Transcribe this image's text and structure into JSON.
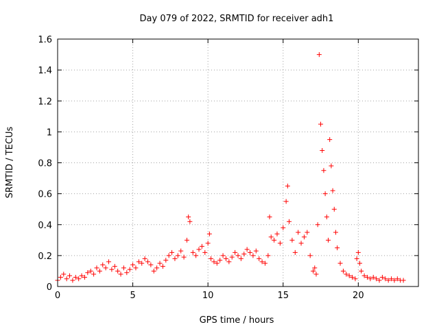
{
  "chart_data": {
    "type": "scatter",
    "title": "Day 079 of 2022, SRMTID for receiver adh1",
    "xlabel": "GPS time / hours",
    "ylabel": "SRMTID / TECUs",
    "xlim": [
      0,
      24
    ],
    "ylim": [
      0,
      1.6
    ],
    "xticks": [
      0,
      5,
      10,
      15,
      20
    ],
    "xtick_labels": [
      "0",
      "5",
      "10",
      "15",
      "20"
    ],
    "yticks": [
      0,
      0.2,
      0.4,
      0.6,
      0.8,
      1.0,
      1.2,
      1.4,
      1.6
    ],
    "ytick_labels": [
      "0",
      "0.2",
      "0.4",
      "0.6",
      "0.8",
      "1",
      "1.2",
      "1.4",
      "1.6"
    ],
    "grid": true,
    "marker": "plus",
    "color": "#ff0000",
    "series": [
      {
        "name": "adh1",
        "x": [
          0.0,
          0.2,
          0.4,
          0.6,
          0.8,
          1.0,
          1.2,
          1.4,
          1.6,
          1.8,
          2.0,
          2.2,
          2.4,
          2.6,
          2.8,
          3.0,
          3.2,
          3.4,
          3.6,
          3.8,
          4.0,
          4.2,
          4.4,
          4.6,
          4.8,
          5.0,
          5.2,
          5.4,
          5.6,
          5.8,
          6.0,
          6.2,
          6.4,
          6.6,
          6.8,
          7.0,
          7.2,
          7.4,
          7.6,
          7.8,
          8.0,
          8.2,
          8.4,
          8.6,
          8.7,
          8.8,
          9.0,
          9.2,
          9.4,
          9.6,
          9.8,
          10.0,
          10.1,
          10.2,
          10.4,
          10.6,
          10.8,
          11.0,
          11.2,
          11.4,
          11.6,
          11.8,
          12.0,
          12.2,
          12.4,
          12.6,
          12.8,
          13.0,
          13.2,
          13.4,
          13.6,
          13.8,
          14.0,
          14.1,
          14.2,
          14.4,
          14.6,
          14.8,
          15.0,
          15.2,
          15.3,
          15.4,
          15.6,
          15.8,
          16.0,
          16.2,
          16.4,
          16.6,
          16.8,
          17.0,
          17.1,
          17.2,
          17.3,
          17.4,
          17.5,
          17.6,
          17.7,
          17.8,
          17.9,
          18.0,
          18.1,
          18.2,
          18.3,
          18.4,
          18.5,
          18.6,
          18.8,
          19.0,
          19.2,
          19.4,
          19.6,
          19.8,
          19.9,
          20.0,
          20.1,
          20.2,
          20.4,
          20.6,
          20.8,
          21.0,
          21.2,
          21.4,
          21.6,
          21.8,
          22.0,
          22.2,
          22.4,
          22.6,
          22.8,
          23.0
        ],
        "y": [
          0.04,
          0.06,
          0.08,
          0.05,
          0.07,
          0.04,
          0.06,
          0.05,
          0.07,
          0.06,
          0.09,
          0.1,
          0.08,
          0.12,
          0.1,
          0.14,
          0.12,
          0.16,
          0.11,
          0.13,
          0.1,
          0.08,
          0.12,
          0.09,
          0.11,
          0.14,
          0.12,
          0.16,
          0.15,
          0.18,
          0.16,
          0.14,
          0.1,
          0.12,
          0.15,
          0.13,
          0.17,
          0.2,
          0.22,
          0.18,
          0.2,
          0.23,
          0.19,
          0.3,
          0.45,
          0.42,
          0.22,
          0.2,
          0.24,
          0.26,
          0.22,
          0.28,
          0.34,
          0.18,
          0.16,
          0.15,
          0.17,
          0.2,
          0.18,
          0.16,
          0.19,
          0.22,
          0.2,
          0.18,
          0.21,
          0.24,
          0.22,
          0.2,
          0.23,
          0.18,
          0.16,
          0.15,
          0.2,
          0.45,
          0.32,
          0.3,
          0.34,
          0.28,
          0.38,
          0.55,
          0.65,
          0.42,
          0.3,
          0.22,
          0.35,
          0.28,
          0.32,
          0.35,
          0.2,
          0.1,
          0.12,
          0.08,
          0.4,
          1.5,
          1.05,
          0.88,
          0.75,
          0.6,
          0.45,
          0.3,
          0.95,
          0.78,
          0.62,
          0.5,
          0.35,
          0.25,
          0.15,
          0.1,
          0.08,
          0.07,
          0.06,
          0.05,
          0.18,
          0.22,
          0.15,
          0.1,
          0.07,
          0.06,
          0.05,
          0.06,
          0.05,
          0.04,
          0.06,
          0.05,
          0.04,
          0.05,
          0.04,
          0.05,
          0.04,
          0.04
        ]
      }
    ]
  }
}
